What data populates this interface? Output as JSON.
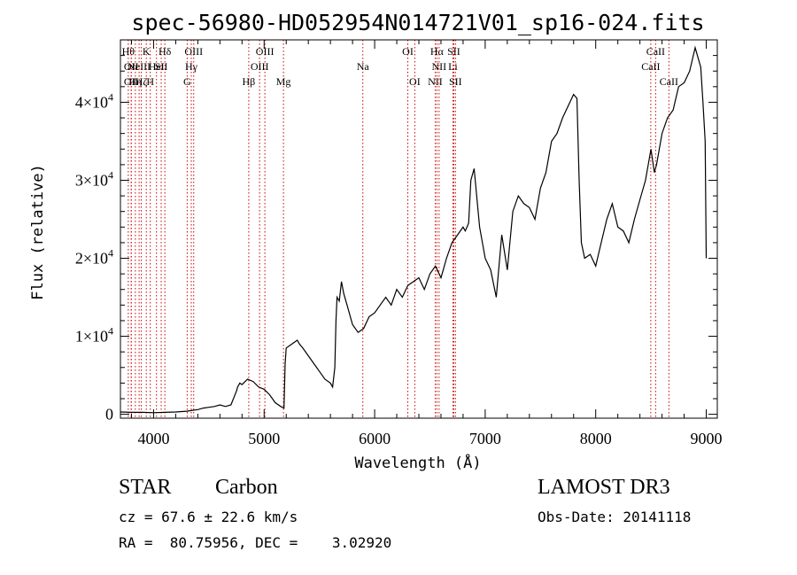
{
  "chart_data": {
    "type": "line",
    "title": "spec-56980-HD052954N014721V01_sp16-024.fits",
    "xlabel": "Wavelength (Å)",
    "ylabel": "Flux (relative)",
    "xlim": [
      3700,
      9100
    ],
    "ylim": [
      -500,
      48000
    ],
    "x_ticks": [
      4000,
      5000,
      6000,
      7000,
      8000,
      9000
    ],
    "x_tick_labels": [
      "4000",
      "5000",
      "6000",
      "7000",
      "8000",
      "9000"
    ],
    "y_ticks": [
      {
        "value": 0,
        "mantissa": "0",
        "exp": ""
      },
      {
        "value": 10000,
        "mantissa": "1×10",
        "exp": "4"
      },
      {
        "value": 20000,
        "mantissa": "2×10",
        "exp": "4"
      },
      {
        "value": 30000,
        "mantissa": "3×10",
        "exp": "4"
      },
      {
        "value": 40000,
        "mantissa": "4×10",
        "exp": "4"
      }
    ],
    "series": [
      {
        "x": [
          3700,
          3800,
          3900,
          4000,
          4100,
          4200,
          4300,
          4400,
          4450,
          4500,
          4550,
          4600,
          4650,
          4700,
          4750,
          4760,
          4780,
          4800,
          4850,
          4900,
          4950,
          5000,
          5050,
          5100,
          5150,
          5180,
          5190,
          5200,
          5250,
          5300,
          5320,
          5350,
          5400,
          5450,
          5500,
          5550,
          5600,
          5620,
          5640,
          5650,
          5660,
          5680,
          5700,
          5720,
          5750,
          5800,
          5850,
          5900,
          5950,
          6000,
          6050,
          6100,
          6150,
          6200,
          6250,
          6300,
          6350,
          6400,
          6450,
          6500,
          6550,
          6600,
          6650,
          6700,
          6750,
          6800,
          6820,
          6850,
          6870,
          6900,
          6950,
          7000,
          7050,
          7100,
          7150,
          7200,
          7250,
          7300,
          7350,
          7400,
          7450,
          7500,
          7550,
          7600,
          7650,
          7700,
          7750,
          7800,
          7830,
          7850,
          7870,
          7900,
          7950,
          8000,
          8050,
          8100,
          8150,
          8200,
          8250,
          8300,
          8350,
          8400,
          8450,
          8500,
          8530,
          8550,
          8600,
          8650,
          8700,
          8750,
          8800,
          8850,
          8900,
          8950,
          8970,
          8990,
          9000
        ],
        "y": [
          300,
          250,
          250,
          200,
          250,
          300,
          400,
          600,
          800,
          900,
          1000,
          1200,
          1000,
          1200,
          3000,
          3500,
          4000,
          3800,
          4500,
          4200,
          3500,
          3200,
          2500,
          1500,
          1000,
          800,
          6500,
          8500,
          9000,
          9500,
          9000,
          8500,
          7500,
          6500,
          5500,
          4500,
          4000,
          3500,
          6000,
          12000,
          15000,
          14500,
          17000,
          15500,
          14000,
          11500,
          10500,
          11000,
          12500,
          13000,
          14000,
          15000,
          14000,
          16000,
          15000,
          16500,
          17000,
          17500,
          16000,
          18000,
          19000,
          17500,
          20000,
          22000,
          23000,
          24000,
          23500,
          24500,
          30000,
          31500,
          24000,
          20000,
          18500,
          15000,
          23000,
          18500,
          26000,
          28000,
          27000,
          26500,
          25000,
          29000,
          31000,
          35000,
          36000,
          38000,
          39500,
          41000,
          40500,
          30000,
          22000,
          20000,
          20500,
          19000,
          22000,
          25000,
          27000,
          24000,
          23500,
          22000,
          25000,
          27500,
          30000,
          34000,
          31000,
          32000,
          36000,
          38000,
          39000,
          42000,
          42500,
          44000,
          47000,
          44500,
          40000,
          35000,
          20000
        ]
      }
    ],
    "line_markers": [
      {
        "x": 3771,
        "label": "Hθ",
        "row": 0
      },
      {
        "x": 3798,
        "label": "OII",
        "row": 1
      },
      {
        "x": 3798,
        "label": "OII",
        "row": 2
      },
      {
        "x": 3835,
        "label": "Hη",
        "row": 2
      },
      {
        "x": 3869,
        "label": "NeIII",
        "row": 1
      },
      {
        "x": 3889,
        "label": "Hζ",
        "row": 2
      },
      {
        "x": 3934,
        "label": "K",
        "row": 0
      },
      {
        "x": 3970,
        "label": "H",
        "row": 2
      },
      {
        "x": 4026,
        "label": "HeI",
        "row": 1
      },
      {
        "x": 4069,
        "label": "SII",
        "row": 1
      },
      {
        "x": 4102,
        "label": "Hδ",
        "row": 0
      },
      {
        "x": 4304,
        "label": "G",
        "row": 2
      },
      {
        "x": 4341,
        "label": "Hγ",
        "row": 1
      },
      {
        "x": 4363,
        "label": "OIII",
        "row": 0
      },
      {
        "x": 4861,
        "label": "Hβ",
        "row": 2
      },
      {
        "x": 4959,
        "label": "OIII",
        "row": 1
      },
      {
        "x": 5007,
        "label": "OIII",
        "row": 0
      },
      {
        "x": 5175,
        "label": "Mg",
        "row": 2
      },
      {
        "x": 5893,
        "label": "Na",
        "row": 1
      },
      {
        "x": 6300,
        "label": "OI",
        "row": 0
      },
      {
        "x": 6363,
        "label": "OI",
        "row": 2
      },
      {
        "x": 6548,
        "label": "NII",
        "row": 2
      },
      {
        "x": 6563,
        "label": "Hα",
        "row": 0
      },
      {
        "x": 6583,
        "label": "NII",
        "row": 1
      },
      {
        "x": 6708,
        "label": "Li",
        "row": 1
      },
      {
        "x": 6716,
        "label": "SII",
        "row": 0
      },
      {
        "x": 6731,
        "label": "SII",
        "row": 2
      },
      {
        "x": 8498,
        "label": "CaII",
        "row": 1
      },
      {
        "x": 8542,
        "label": "CaII",
        "row": 0
      },
      {
        "x": 8662,
        "label": "CaII",
        "row": 2
      }
    ]
  },
  "info": {
    "class": "STAR",
    "subclass": "Carbon",
    "survey": "LAMOST DR3",
    "cz": "cz = 67.6 ± 22.6 km/s",
    "obs_date": "Obs-Date: 20141118",
    "radec": "RA =  80.75956, DEC =    3.02920"
  },
  "colors": {
    "spectrum": "#000000",
    "marker": "#cc0000",
    "axes": "#000000"
  }
}
